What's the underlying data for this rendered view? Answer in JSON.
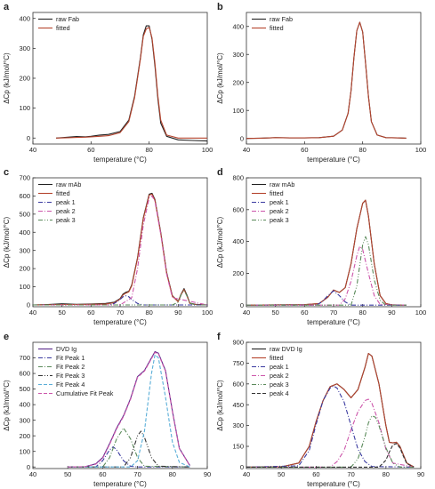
{
  "chart_data": [
    {
      "panel": "a",
      "type": "line",
      "xlabel": "temperature (°C)",
      "ylabel": "ΔCp (kJ/mol/°C)",
      "xlim": [
        40,
        100
      ],
      "ylim": [
        -20,
        420
      ],
      "xticks": [
        40,
        60,
        80,
        100
      ],
      "yticks": [
        0,
        100,
        200,
        300,
        400
      ],
      "legend": "top-left",
      "series": [
        {
          "name": "raw Fab",
          "color": "#222222",
          "x": [
            48,
            52,
            55,
            58,
            60,
            63,
            66,
            70,
            73,
            75,
            77,
            78,
            79,
            80,
            81,
            82,
            83,
            84,
            86,
            90,
            95,
            100
          ],
          "y": [
            0,
            3,
            5,
            4,
            6,
            10,
            12,
            22,
            60,
            140,
            270,
            345,
            375,
            375,
            330,
            240,
            130,
            50,
            6,
            -6,
            -8,
            -10
          ]
        },
        {
          "name": "fitted",
          "color": "#b5452f",
          "x": [
            48,
            52,
            55,
            58,
            60,
            63,
            66,
            70,
            73,
            75,
            77,
            78,
            79,
            80,
            81,
            82,
            83,
            84,
            86,
            90,
            95,
            100
          ],
          "y": [
            0,
            1,
            2,
            3,
            4,
            6,
            8,
            18,
            55,
            135,
            265,
            340,
            365,
            370,
            335,
            250,
            140,
            60,
            10,
            0,
            0,
            0
          ]
        }
      ]
    },
    {
      "panel": "b",
      "type": "line",
      "xlabel": "temperature (°C)",
      "ylabel": "ΔCp (kJ/mol/°C)",
      "xlim": [
        40,
        100
      ],
      "ylim": [
        -20,
        450
      ],
      "xticks": [
        40,
        60,
        80,
        100
      ],
      "yticks": [
        0,
        100,
        200,
        300,
        400
      ],
      "legend": "top-left",
      "series": [
        {
          "name": "raw Fab",
          "color": "#222222",
          "x": [
            40,
            45,
            50,
            55,
            60,
            65,
            70,
            73,
            75,
            76,
            77,
            78,
            79,
            80,
            81,
            82,
            83,
            85,
            88,
            92,
            95
          ],
          "y": [
            0,
            1,
            3,
            2,
            2,
            3,
            8,
            30,
            90,
            170,
            290,
            385,
            415,
            380,
            270,
            150,
            60,
            12,
            3,
            2,
            1
          ]
        },
        {
          "name": "fitted",
          "color": "#b5452f",
          "x": [
            40,
            45,
            50,
            55,
            60,
            65,
            70,
            73,
            75,
            76,
            77,
            78,
            79,
            80,
            81,
            82,
            83,
            85,
            88,
            92,
            95
          ],
          "y": [
            0,
            1,
            3,
            2,
            2,
            3,
            8,
            30,
            90,
            170,
            290,
            385,
            415,
            380,
            270,
            150,
            60,
            12,
            3,
            2,
            1
          ]
        }
      ]
    },
    {
      "panel": "c",
      "type": "line",
      "xlabel": "temperature (°C)",
      "ylabel": "ΔCp (kJ/mol/°C)",
      "xlim": [
        40,
        100
      ],
      "ylim": [
        -10,
        700
      ],
      "xticks": [
        40,
        50,
        60,
        70,
        80,
        90,
        100
      ],
      "yticks": [
        0,
        100,
        200,
        300,
        400,
        500,
        600,
        700
      ],
      "legend": "top-left",
      "series": [
        {
          "name": "raw mAb",
          "color": "#222222",
          "x": [
            40,
            45,
            50,
            55,
            60,
            65,
            68,
            70,
            71,
            72,
            73,
            74,
            76,
            78,
            80,
            81,
            82,
            84,
            86,
            88,
            90,
            91,
            92,
            93,
            94,
            96,
            100
          ],
          "y": [
            0,
            2,
            6,
            3,
            5,
            8,
            15,
            35,
            60,
            70,
            75,
            110,
            260,
            480,
            610,
            615,
            580,
            400,
            180,
            50,
            20,
            60,
            90,
            55,
            10,
            3,
            0
          ]
        },
        {
          "name": "fitted",
          "color": "#b5452f",
          "x": [
            40,
            45,
            50,
            55,
            60,
            65,
            68,
            70,
            71,
            72,
            73,
            74,
            76,
            78,
            80,
            81,
            82,
            84,
            86,
            88,
            90,
            91,
            92,
            93,
            94,
            96,
            100
          ],
          "y": [
            0,
            1,
            2,
            2,
            3,
            5,
            12,
            32,
            55,
            65,
            72,
            105,
            255,
            475,
            605,
            610,
            575,
            395,
            175,
            48,
            18,
            58,
            85,
            50,
            8,
            2,
            0
          ]
        },
        {
          "name": "peak 1",
          "color": "#3a3aa0",
          "x": [
            40,
            66,
            68,
            70,
            71,
            72,
            73,
            74,
            76,
            78,
            100
          ],
          "y": [
            0,
            0,
            8,
            30,
            45,
            50,
            45,
            30,
            8,
            0,
            0
          ]
        },
        {
          "name": "peak 2",
          "color": "#cc55aa",
          "x": [
            40,
            70,
            74,
            76,
            78,
            80,
            81,
            82,
            84,
            86,
            88,
            100
          ],
          "y": [
            0,
            0,
            40,
            200,
            440,
            590,
            600,
            570,
            390,
            170,
            40,
            0
          ]
        },
        {
          "name": "peak 3",
          "color": "#5a8a5a",
          "x": [
            40,
            88,
            90,
            91,
            92,
            93,
            94,
            96,
            100
          ],
          "y": [
            0,
            0,
            15,
            55,
            80,
            50,
            10,
            0,
            0
          ]
        }
      ]
    },
    {
      "panel": "d",
      "type": "line",
      "xlabel": "temperature (°C)",
      "ylabel": "ΔCp (kJ/mol/°C)",
      "xlim": [
        40,
        100
      ],
      "ylim": [
        -10,
        800
      ],
      "xticks": [
        40,
        50,
        60,
        70,
        80,
        90,
        100
      ],
      "yticks": [
        0,
        200,
        400,
        600,
        800
      ],
      "legend": "top-left",
      "series": [
        {
          "name": "raw mAb",
          "color": "#222222",
          "x": [
            40,
            50,
            60,
            65,
            68,
            70,
            72,
            74,
            76,
            78,
            80,
            81,
            82,
            84,
            86,
            88,
            90,
            95
          ],
          "y": [
            0,
            2,
            3,
            10,
            50,
            95,
            80,
            110,
            260,
            480,
            640,
            660,
            560,
            260,
            60,
            10,
            2,
            0
          ]
        },
        {
          "name": "fitted",
          "color": "#b5452f",
          "x": [
            40,
            50,
            60,
            65,
            68,
            70,
            72,
            74,
            76,
            78,
            80,
            81,
            82,
            84,
            86,
            88,
            90,
            95
          ],
          "y": [
            0,
            2,
            3,
            10,
            50,
            95,
            80,
            110,
            260,
            480,
            640,
            660,
            560,
            260,
            60,
            10,
            2,
            0
          ]
        },
        {
          "name": "peak 1",
          "color": "#3a3aa0",
          "x": [
            40,
            64,
            66,
            68,
            70,
            72,
            74,
            76,
            95
          ],
          "y": [
            0,
            0,
            20,
            60,
            90,
            60,
            20,
            0,
            0
          ]
        },
        {
          "name": "peak 2",
          "color": "#cc55aa",
          "x": [
            40,
            72,
            74,
            76,
            78,
            79,
            80,
            82,
            84,
            86,
            95
          ],
          "y": [
            0,
            0,
            40,
            150,
            310,
            370,
            350,
            200,
            60,
            5,
            0
          ]
        },
        {
          "name": "peak 3",
          "color": "#5a8a5a",
          "x": [
            40,
            76,
            78,
            80,
            81,
            82,
            84,
            86,
            88,
            95
          ],
          "y": [
            0,
            0,
            120,
            380,
            430,
            380,
            160,
            30,
            0,
            0
          ]
        }
      ]
    },
    {
      "panel": "e",
      "type": "line",
      "xlabel": "temperature (°C)",
      "ylabel": "ΔCp (kJ/mol/°C)",
      "xlim": [
        40,
        90
      ],
      "ylim": [
        -10,
        800
      ],
      "xticks": [
        40,
        50,
        60,
        70,
        80,
        90
      ],
      "yticks": [
        0,
        100,
        200,
        300,
        400,
        500,
        600,
        700
      ],
      "legend": "top-left",
      "series": [
        {
          "name": "DVD Ig",
          "color": "#5a2a8a",
          "x": [
            50,
            55,
            58,
            60,
            62,
            64,
            66,
            68,
            70,
            72,
            74,
            75,
            76,
            78,
            80,
            82,
            85
          ],
          "y": [
            0,
            2,
            20,
            60,
            150,
            250,
            330,
            440,
            580,
            620,
            700,
            740,
            730,
            620,
            360,
            120,
            10
          ]
        },
        {
          "name": "Fit Peak 1",
          "color": "#3a3aa0",
          "x": [
            50,
            58,
            60,
            62,
            63,
            64,
            66,
            68,
            70,
            85
          ],
          "y": [
            0,
            0,
            40,
            110,
            130,
            110,
            40,
            5,
            0,
            0
          ]
        },
        {
          "name": "Fit Peak 2",
          "color": "#5a8a5a",
          "x": [
            50,
            60,
            62,
            64,
            66,
            68,
            70,
            72,
            85
          ],
          "y": [
            0,
            0,
            60,
            180,
            250,
            180,
            60,
            5,
            0
          ]
        },
        {
          "name": "Fit Peak 3",
          "color": "#333333",
          "x": [
            50,
            66,
            68,
            70,
            71,
            72,
            74,
            76,
            85
          ],
          "y": [
            0,
            0,
            60,
            200,
            230,
            190,
            60,
            5,
            0
          ]
        },
        {
          "name": "Fit Peak 4",
          "color": "#5aaed8",
          "x": [
            50,
            68,
            70,
            72,
            74,
            75,
            76,
            78,
            80,
            82,
            85
          ],
          "y": [
            0,
            0,
            40,
            230,
            600,
            720,
            700,
            450,
            160,
            30,
            0
          ]
        },
        {
          "name": "Cumulative Fit Peak",
          "color": "#cc55aa",
          "x": [
            50,
            55,
            58,
            60,
            62,
            64,
            66,
            68,
            70,
            72,
            74,
            75,
            76,
            78,
            80,
            82,
            85
          ],
          "y": [
            0,
            2,
            18,
            55,
            145,
            245,
            325,
            435,
            575,
            615,
            695,
            735,
            725,
            615,
            355,
            118,
            8
          ]
        }
      ]
    },
    {
      "panel": "f",
      "type": "line",
      "xlabel": "temperature (°C)",
      "ylabel": "ΔCp (kJ/mol/°C)",
      "xlim": [
        40,
        90
      ],
      "ylim": [
        -10,
        900
      ],
      "xticks": [
        40,
        50,
        60,
        70,
        80,
        90
      ],
      "yticks": [
        0,
        150,
        300,
        450,
        600,
        750,
        900
      ],
      "legend": "top-left",
      "series": [
        {
          "name": "raw DVD Ig",
          "color": "#222222",
          "x": [
            40,
            50,
            55,
            58,
            60,
            62,
            64,
            66,
            68,
            70,
            72,
            74,
            75,
            76,
            78,
            80,
            81,
            82,
            83,
            84,
            85,
            86,
            88
          ],
          "y": [
            0,
            2,
            30,
            150,
            330,
            480,
            580,
            600,
            560,
            500,
            560,
            720,
            820,
            800,
            600,
            300,
            180,
            175,
            180,
            150,
            90,
            30,
            2
          ]
        },
        {
          "name": "fitted",
          "color": "#b5452f",
          "x": [
            40,
            50,
            55,
            58,
            60,
            62,
            64,
            66,
            68,
            70,
            72,
            74,
            75,
            76,
            78,
            80,
            81,
            82,
            83,
            84,
            85,
            86,
            88
          ],
          "y": [
            0,
            2,
            30,
            150,
            330,
            480,
            580,
            600,
            560,
            500,
            560,
            720,
            820,
            800,
            600,
            300,
            180,
            175,
            180,
            150,
            90,
            30,
            2
          ]
        },
        {
          "name": "peak 1",
          "color": "#3a3aa0",
          "x": [
            40,
            55,
            58,
            60,
            62,
            64,
            65,
            66,
            68,
            70,
            72,
            74,
            76,
            88
          ],
          "y": [
            0,
            10,
            120,
            310,
            480,
            570,
            585,
            570,
            470,
            300,
            130,
            40,
            5,
            0
          ]
        },
        {
          "name": "peak 2",
          "color": "#cc55aa",
          "x": [
            40,
            64,
            66,
            68,
            70,
            72,
            74,
            75,
            76,
            78,
            80,
            82,
            88
          ],
          "y": [
            0,
            0,
            40,
            120,
            270,
            400,
            480,
            490,
            460,
            320,
            130,
            30,
            0
          ]
        },
        {
          "name": "peak 3",
          "color": "#5a8a5a",
          "x": [
            40,
            70,
            72,
            74,
            75,
            76,
            77,
            78,
            80,
            82,
            84,
            88
          ],
          "y": [
            0,
            0,
            60,
            220,
            320,
            370,
            360,
            300,
            140,
            30,
            0,
            0
          ]
        },
        {
          "name": "peak 4",
          "color": "#333333",
          "x": [
            40,
            78,
            80,
            81,
            82,
            83,
            84,
            85,
            86,
            88
          ],
          "y": [
            0,
            0,
            50,
            110,
            160,
            170,
            140,
            80,
            25,
            0
          ]
        }
      ]
    }
  ]
}
